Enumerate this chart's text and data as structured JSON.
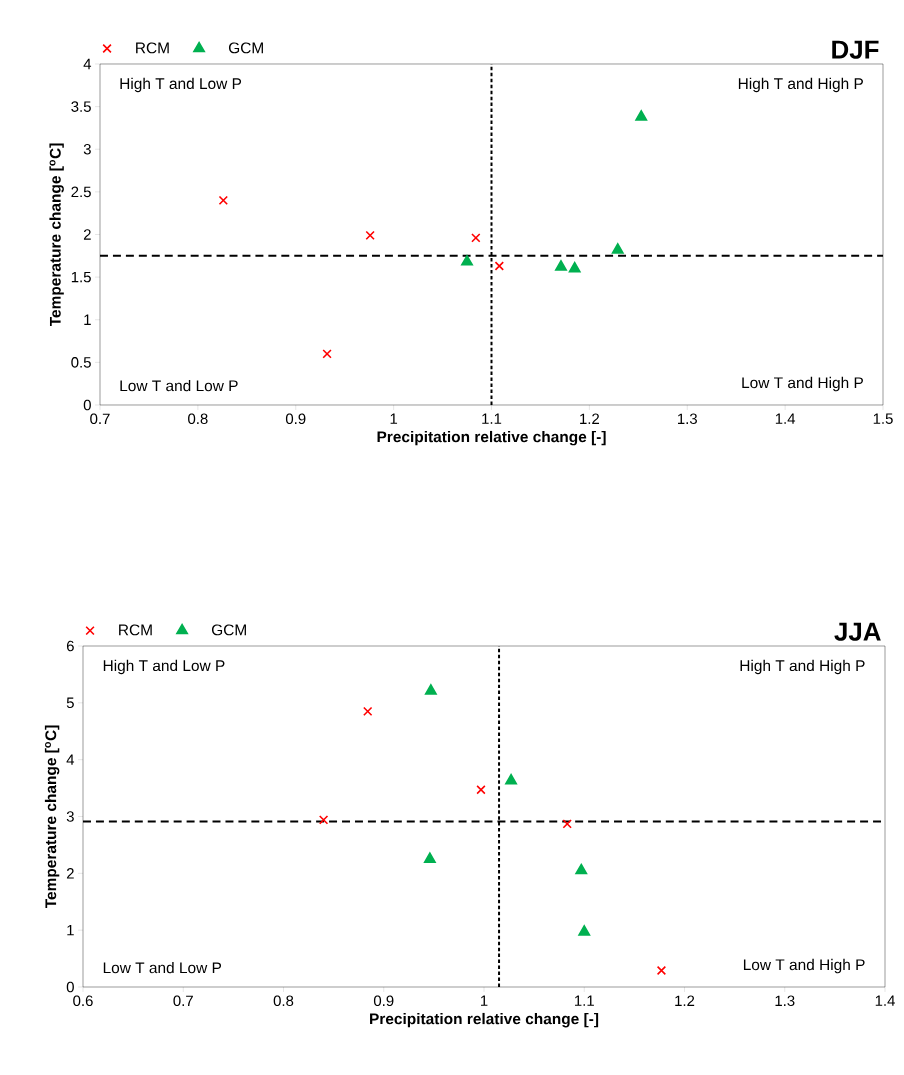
{
  "chart_data": [
    {
      "type": "scatter",
      "title": "DJF",
      "xlabel": "Precipitation relative change [-]",
      "ylabel": "Temperature change [$^{o}$C]",
      "xlim": [
        0.7,
        1.5
      ],
      "xticks": [
        0.7,
        0.8,
        0.9,
        1,
        1.1,
        1.2,
        1.3,
        1.4,
        1.5
      ],
      "ylim": [
        0,
        4
      ],
      "yticks": [
        0,
        0.5,
        1,
        1.5,
        2,
        2.5,
        3,
        3.5,
        4
      ],
      "legend": "top left",
      "grid": false,
      "series": [
        {
          "name": "RCM",
          "color": "#ff0000",
          "marker": "cross",
          "x": [
            0.826,
            0.976,
            0.932,
            1.084,
            1.108
          ],
          "values": [
            2.4,
            1.99,
            0.6,
            1.96,
            1.63
          ]
        },
        {
          "name": "GCM",
          "color": "#00b050",
          "marker": "triangle",
          "x": [
            1.075,
            1.171,
            1.185,
            1.229,
            1.253
          ],
          "values": [
            1.68,
            1.62,
            1.6,
            1.82,
            3.38
          ]
        }
      ],
      "ref_lines": [
        {
          "axis": "x",
          "value": 1.1,
          "line_style": "dotted",
          "color": "#000000"
        },
        {
          "axis": "y",
          "value": 1.75,
          "line_style": "dashed",
          "color": "#000000"
        }
      ],
      "annotations": [
        "High T and Low P",
        "High T and High P",
        "Low T and Low P",
        "Low T and High P"
      ]
    },
    {
      "type": "scatter",
      "title": "JJA",
      "xlabel": "Precipitation relative change [-]",
      "ylabel": "Temperature change [$^{o}$C]",
      "xlim": [
        0.6,
        1.4
      ],
      "xticks": [
        0.6,
        0.7,
        0.8,
        0.9,
        1,
        1.1,
        1.2,
        1.3,
        1.4
      ],
      "ylim": [
        0,
        6
      ],
      "yticks": [
        0,
        1,
        2,
        3,
        4,
        5,
        6
      ],
      "legend": "top left",
      "grid": false,
      "series": [
        {
          "name": "RCM",
          "color": "#ff0000",
          "marker": "cross",
          "x": [
            0.884,
            0.997,
            0.84,
            1.083,
            1.177
          ],
          "values": [
            4.85,
            3.47,
            2.94,
            2.87,
            0.29
          ]
        },
        {
          "name": "GCM",
          "color": "#00b050",
          "marker": "triangle",
          "x": [
            0.947,
            1.027,
            0.946,
            1.097,
            1.1
          ],
          "values": [
            5.21,
            3.63,
            2.25,
            2.05,
            0.97
          ]
        }
      ],
      "ref_lines": [
        {
          "axis": "x",
          "value": 1.015,
          "line_style": "dotted",
          "color": "#000000"
        },
        {
          "axis": "y",
          "value": 2.91,
          "line_style": "dashed",
          "color": "#000000"
        }
      ],
      "annotations": [
        "High T and Low P",
        "High T and High P",
        "Low T and Low P",
        "Low T and High P"
      ]
    }
  ]
}
